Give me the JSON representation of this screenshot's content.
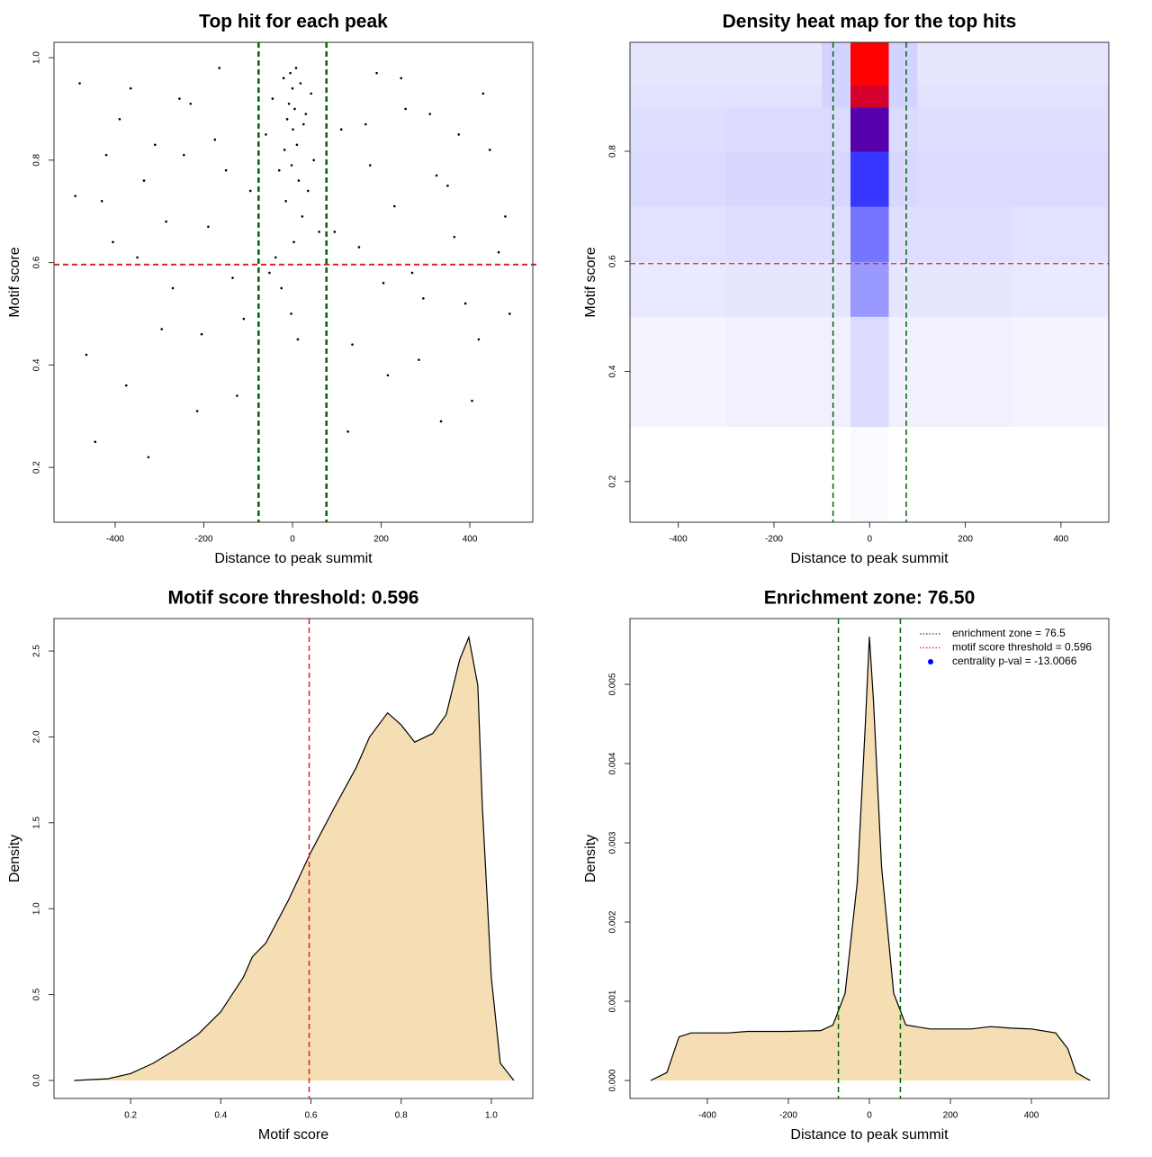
{
  "chart_data": [
    {
      "type": "scatter",
      "title": "Top hit for each peak",
      "xlabel": "Distance to peak summit",
      "ylabel": "Motif score",
      "xlim": [
        -538,
        542
      ],
      "ylim": [
        0.093,
        1.03
      ],
      "xticks": [
        -400,
        -200,
        0,
        200,
        400
      ],
      "yticks": [
        0.2,
        0.4,
        0.6,
        0.8,
        {
          "value": 1,
          "label": "1.0"
        }
      ],
      "color": "#000000",
      "vlines": [
        -76.5,
        76.5
      ],
      "vline_color": "#006400",
      "hline": 0.596,
      "hline_color": "#dd2222",
      "x": [
        -480,
        -430,
        -390,
        -350,
        -310,
        -270,
        -230,
        -190,
        -150,
        -110,
        110,
        150,
        190,
        230,
        270,
        310,
        350,
        390,
        430,
        480,
        -465,
        -420,
        -375,
        -335,
        -295,
        -255,
        -215,
        -175,
        -135,
        -95,
        95,
        135,
        175,
        215,
        255,
        295,
        335,
        375,
        420,
        465,
        -490,
        -445,
        -405,
        -365,
        -325,
        -285,
        -245,
        -205,
        -165,
        -125,
        125,
        165,
        205,
        245,
        285,
        325,
        365,
        405,
        445,
        490,
        -60,
        -45,
        -30,
        -20,
        -12,
        -5,
        0,
        5,
        10,
        18,
        25,
        35,
        48,
        60,
        -38,
        -15,
        8,
        22,
        -25,
        3,
        -8,
        14,
        -3,
        30,
        -52,
        42,
        1,
        -18,
        12,
        -2
      ],
      "y": [
        0.95,
        0.72,
        0.88,
        0.61,
        0.83,
        0.55,
        0.91,
        0.67,
        0.78,
        0.49,
        0.86,
        0.63,
        0.97,
        0.71,
        0.58,
        0.89,
        0.75,
        0.52,
        0.93,
        0.69,
        0.42,
        0.81,
        0.36,
        0.76,
        0.47,
        0.92,
        0.31,
        0.84,
        0.57,
        0.74,
        0.66,
        0.44,
        0.79,
        0.38,
        0.9,
        0.53,
        0.29,
        0.85,
        0.45,
        0.62,
        0.73,
        0.25,
        0.64,
        0.94,
        0.22,
        0.68,
        0.81,
        0.46,
        0.98,
        0.34,
        0.27,
        0.87,
        0.56,
        0.96,
        0.41,
        0.77,
        0.65,
        0.33,
        0.82,
        0.5,
        0.85,
        0.92,
        0.78,
        0.96,
        0.88,
        0.97,
        0.94,
        0.9,
        0.83,
        0.95,
        0.87,
        0.74,
        0.8,
        0.66,
        0.61,
        0.72,
        0.98,
        0.69,
        0.55,
        0.64,
        0.91,
        0.76,
        0.5,
        0.89,
        0.58,
        0.93,
        0.86,
        0.82,
        0.45,
        0.79
      ]
    },
    {
      "type": "heatmap",
      "title": "Density heat map for the top hits",
      "xlabel": "Distance to peak summit",
      "ylabel": "Motif score",
      "xlim": [
        -501,
        500
      ],
      "ylim": [
        0.126,
        0.998
      ],
      "xticks": [
        -400,
        -200,
        0,
        200,
        400
      ],
      "yticks": [
        0.2,
        0.4,
        0.6,
        0.8
      ],
      "vlines": [
        -76.5,
        76.5
      ],
      "vline_color": "#006400",
      "hline": 0.596,
      "hline_color": "#dd2222",
      "xbins": [
        -501,
        -300,
        -100,
        -40,
        40,
        100,
        300,
        500
      ],
      "ybins": [
        0.126,
        0.3,
        0.5,
        0.6,
        0.7,
        0.8,
        0.88,
        0.92,
        0.998
      ],
      "z": [
        [
          0,
          0,
          0,
          0.01,
          0,
          0,
          0
        ],
        [
          0.03,
          0.04,
          0.04,
          0.1,
          0.04,
          0.04,
          0.03
        ],
        [
          0.06,
          0.07,
          0.07,
          0.28,
          0.07,
          0.07,
          0.06
        ],
        [
          0.08,
          0.09,
          0.09,
          0.38,
          0.09,
          0.09,
          0.08
        ],
        [
          0.1,
          0.11,
          0.11,
          0.55,
          0.11,
          0.1,
          0.1
        ],
        [
          0.09,
          0.1,
          0.1,
          0.8,
          0.1,
          0.09,
          0.09
        ],
        [
          0.08,
          0.08,
          0.12,
          0.95,
          0.12,
          0.08,
          0.08
        ],
        [
          0.07,
          0.07,
          0.12,
          1,
          0.12,
          0.07,
          0.07
        ]
      ]
    },
    {
      "type": "area",
      "title": "Motif score threshold: 0.596",
      "xlabel": "Motif score",
      "ylabel": "Density",
      "xlim": [
        0.03,
        1.092
      ],
      "ylim": [
        -0.105,
        2.689
      ],
      "xticks": [
        0.2,
        0.4,
        0.6,
        0.8,
        {
          "value": 1,
          "label": "1.0"
        }
      ],
      "yticks": [
        {
          "value": 0,
          "label": "0.0"
        },
        0.5,
        {
          "value": 1,
          "label": "1.0"
        },
        1.5,
        {
          "value": 2,
          "label": "2.0"
        },
        2.5
      ],
      "color": "#f5deb3",
      "vlines": [
        0.596
      ],
      "vline_color": "#dd2222",
      "x": [
        0.075,
        0.15,
        0.2,
        0.25,
        0.3,
        0.35,
        0.4,
        0.45,
        0.47,
        0.5,
        0.55,
        0.6,
        0.65,
        0.7,
        0.73,
        0.77,
        0.8,
        0.83,
        0.87,
        0.9,
        0.93,
        0.95,
        0.97,
        0.98,
        1.0,
        1.02,
        1.05
      ],
      "y": [
        0,
        0.01,
        0.04,
        0.1,
        0.18,
        0.27,
        0.4,
        0.6,
        0.72,
        0.8,
        1.05,
        1.33,
        1.58,
        1.82,
        2.0,
        2.14,
        2.07,
        1.97,
        2.02,
        2.13,
        2.45,
        2.58,
        2.3,
        1.6,
        0.6,
        0.1,
        0
      ]
    },
    {
      "type": "area",
      "title": "Enrichment zone: 76.50",
      "xlabel": "Distance to peak summit",
      "ylabel": "Density",
      "xlim": [
        -591,
        591
      ],
      "ylim": [
        -0.000227,
        0.00583
      ],
      "xticks": [
        -400,
        -200,
        0,
        200,
        400
      ],
      "yticks": [
        {
          "value": 0,
          "label": "0.000"
        },
        0.001,
        0.002,
        0.003,
        0.004,
        0.005
      ],
      "color": "#f5deb3",
      "vlines": [
        -76.5,
        76.5
      ],
      "vline_color": "#006400",
      "x": [
        -540,
        -500,
        -470,
        -440,
        -350,
        -300,
        -200,
        -120,
        -90,
        -60,
        -30,
        -10,
        0,
        10,
        30,
        60,
        90,
        150,
        250,
        300,
        350,
        400,
        460,
        490,
        510,
        545
      ],
      "y": [
        0,
        0.0001,
        0.00055,
        0.0006,
        0.0006,
        0.00062,
        0.00062,
        0.00063,
        0.0007,
        0.0011,
        0.0025,
        0.0045,
        0.0056,
        0.0048,
        0.0027,
        0.0011,
        0.0007,
        0.00065,
        0.00065,
        0.00068,
        0.00066,
        0.00065,
        0.0006,
        0.0004,
        0.0001,
        0
      ],
      "legend_position": "topright",
      "legend": [
        {
          "label": "enrichment zone = 76.5",
          "color": "#006400",
          "style": "dotted"
        },
        {
          "label": "motif score threshold = 0.596",
          "color": "#dd2222",
          "style": "dotted"
        },
        {
          "label": "centrality p-val = -13.0066",
          "color": "#0000ff",
          "style": "point"
        }
      ]
    }
  ]
}
